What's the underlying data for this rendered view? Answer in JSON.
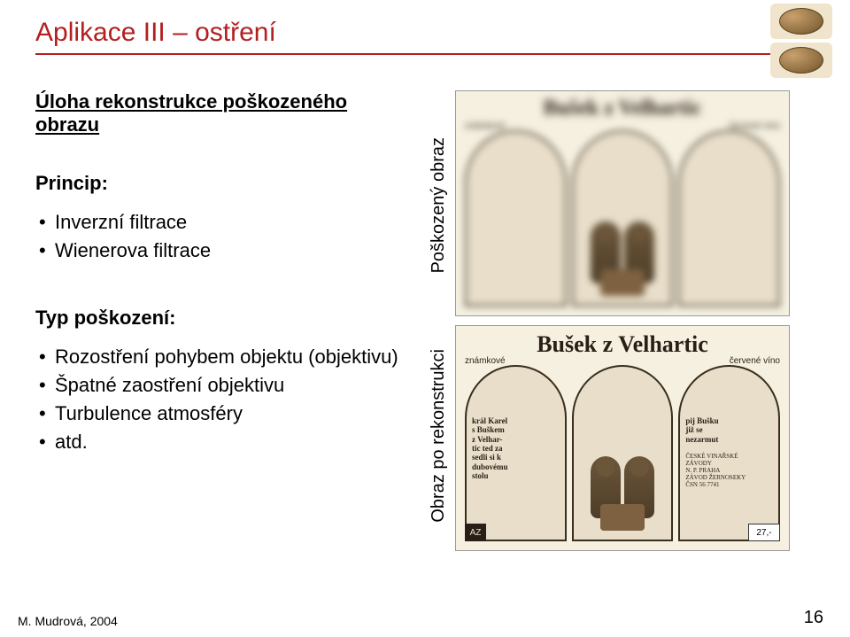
{
  "title": {
    "text": "Aplikace III – ostření",
    "color": "#b22020"
  },
  "underline_color": "#b22020",
  "subtitle": "Úloha rekonstrukce poškozeného obrazu",
  "principle": {
    "heading": "Princip:",
    "items": [
      "Inverzní filtrace",
      "Wienerova filtrace"
    ]
  },
  "damage": {
    "heading": "Typ poškození:",
    "items": [
      "Rozostření pohybem objektu (objektivu)",
      "Špatné zaostření objektivu",
      "Turbulence atmosféry",
      "atd."
    ]
  },
  "images": {
    "damaged": {
      "vlabel": "Poškozený obraz",
      "header": "Bušek z Velhartic",
      "left_wine": "známkové",
      "right_wine": "červené víno"
    },
    "reconstructed": {
      "vlabel": "Obraz po rekonstrukci",
      "header": "Bušek z Velhartic",
      "left_wine": "známkové",
      "right_wine": "červené víno",
      "left_panel_text": "král Karel\ns Buškem\nz Velhar-\ntic ted za\nsedli si k\ndubovému\nstolu",
      "right_panel_text": "pij Bušku\njiž se\nnezarmut",
      "right_small": "ČESKÉ VINAŘSKÉ\nZÁVODY\nn. p. PRAHA\nzávod Žernoseky\nČSN 56 7741",
      "price": "27,-",
      "maker": "AZ"
    }
  },
  "footer": {
    "credit": "M. Mudrová, 2004",
    "page": "16"
  }
}
